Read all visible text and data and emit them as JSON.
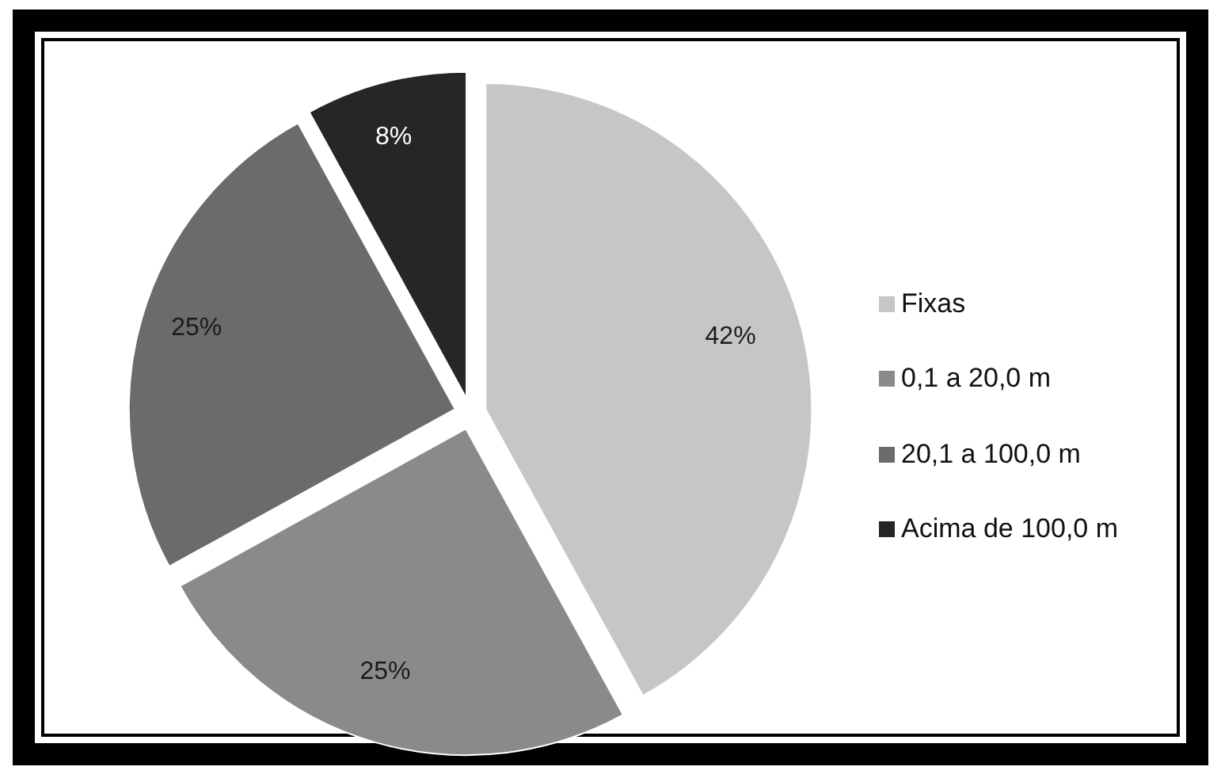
{
  "chart_data": {
    "type": "pie",
    "categories": [
      "Fixas",
      "0,1 a 20,0 m",
      "20,1 a 100,0 m",
      "Acima de 100,0 m"
    ],
    "values": [
      42,
      25,
      25,
      8
    ],
    "value_labels": [
      "42%",
      "25%",
      "25%",
      "8%"
    ],
    "colors": [
      "#c6c6c6",
      "#8a8a8a",
      "#6b6b6b",
      "#262626"
    ],
    "legend": "right"
  }
}
